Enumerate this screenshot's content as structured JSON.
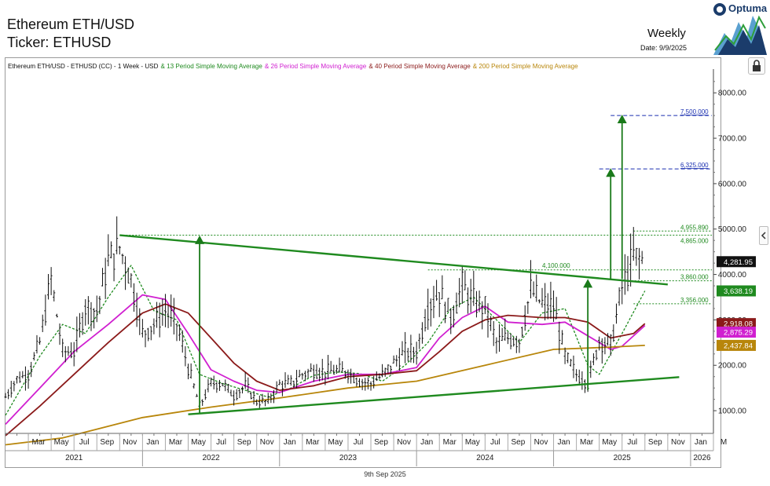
{
  "header": {
    "title": "Ethereum ETH/USD",
    "ticker_label": "Ticker: ETHUSD",
    "period": "Weekly",
    "date": "Date: 9/9/2025",
    "logo_text": "Optuma"
  },
  "footer": {
    "date": "9th Sep 2025"
  },
  "legend": [
    {
      "text": "Ethereum ETH/USD - ETHUSD (CC) - 1 Week - USD",
      "color": "#111111"
    },
    {
      "text": "& 13 Period Simple Moving Average",
      "color": "#1f8a1f"
    },
    {
      "text": "& 26 Period Simple Moving Average",
      "color": "#d020d0"
    },
    {
      "text": "& 40 Period Simple Moving Average",
      "color": "#8b1a1a"
    },
    {
      "text": "& 200 Period Simple Moving Average",
      "color": "#b8860b"
    }
  ],
  "chart_data": {
    "type": "line",
    "x_axis": {
      "months": [
        {
          "label": "Mar",
          "x": "2021-03"
        },
        {
          "label": "May",
          "x": "2021-05"
        },
        {
          "label": "Jul",
          "x": "2021-07"
        },
        {
          "label": "Sep",
          "x": "2021-09"
        },
        {
          "label": "Nov",
          "x": "2021-11"
        },
        {
          "label": "Jan",
          "x": "2022-01"
        },
        {
          "label": "Mar",
          "x": "2022-03"
        },
        {
          "label": "May",
          "x": "2022-05"
        },
        {
          "label": "Jul",
          "x": "2022-07"
        },
        {
          "label": "Sep",
          "x": "2022-09"
        },
        {
          "label": "Nov",
          "x": "2022-11"
        },
        {
          "label": "Jan",
          "x": "2023-01"
        },
        {
          "label": "Mar",
          "x": "2023-03"
        },
        {
          "label": "May",
          "x": "2023-05"
        },
        {
          "label": "Jul",
          "x": "2023-07"
        },
        {
          "label": "Sep",
          "x": "2023-09"
        },
        {
          "label": "Nov",
          "x": "2023-11"
        },
        {
          "label": "Jan",
          "x": "2024-01"
        },
        {
          "label": "Mar",
          "x": "2024-03"
        },
        {
          "label": "May",
          "x": "2024-05"
        },
        {
          "label": "Jul",
          "x": "2024-07"
        },
        {
          "label": "Sep",
          "x": "2024-09"
        },
        {
          "label": "Nov",
          "x": "2024-11"
        },
        {
          "label": "Jan",
          "x": "2025-01"
        },
        {
          "label": "Mar",
          "x": "2025-03"
        },
        {
          "label": "May",
          "x": "2025-05"
        },
        {
          "label": "Jul",
          "x": "2025-07"
        },
        {
          "label": "Sep",
          "x": "2025-09"
        },
        {
          "label": "Nov",
          "x": "2025-11"
        },
        {
          "label": "Jan",
          "x": "2026-01"
        },
        {
          "label": "M",
          "x": "2026-03"
        }
      ],
      "years": [
        {
          "label": "2021",
          "x": "2021-07"
        },
        {
          "label": "2022",
          "x": "2022-07"
        },
        {
          "label": "2023",
          "x": "2023-07"
        },
        {
          "label": "2024",
          "x": "2024-07"
        },
        {
          "label": "2025",
          "x": "2025-07"
        },
        {
          "label": "2026",
          "x": "2026-02"
        }
      ],
      "range": [
        "2021-01",
        "2026-03"
      ]
    },
    "y_axis": {
      "ticks": [
        "1000.00",
        "2000.00",
        "3000.00",
        "4000.00",
        "5000.00",
        "6000.00",
        "7000.00",
        "8000.00"
      ],
      "ylim": [
        500,
        8350
      ],
      "side": "right"
    },
    "price_tags": [
      {
        "label": "4,281.95",
        "value": 4281.95,
        "bg": "#111111",
        "fg": "#ffffff"
      },
      {
        "label": "3,638.19",
        "value": 3638.19,
        "bg": "#1f8a1f",
        "fg": "#ffffff"
      },
      {
        "label": "2,918.08",
        "value": 2918.08,
        "bg": "#8b1a1a",
        "fg": "#ffffff"
      },
      {
        "label": "2,875.29",
        "value": 2730,
        "bg": "#d020d0",
        "fg": "#ffffff"
      },
      {
        "label": "2,437.84",
        "value": 2437.84,
        "bg": "#b8860b",
        "fg": "#ffffff"
      }
    ],
    "levels": [
      {
        "label": "7,500.000",
        "value": 7500,
        "x_from": "2025-06",
        "color": "#1a2fb0",
        "dash": "5,3"
      },
      {
        "label": "6,325.000",
        "value": 6325,
        "x_from": "2025-05",
        "color": "#1a2fb0",
        "dash": "5,3"
      },
      {
        "label": "4,955.890",
        "value": 4955.89,
        "x_from": "2025-08",
        "color": "#1f8a1f",
        "dash": "2,2"
      },
      {
        "label": "4,865.000",
        "value": 4865,
        "x_from": "2021-11",
        "color": "#1f8a1f",
        "dash": "2,2"
      },
      {
        "label": "4,100.000",
        "value": 4100,
        "x_from": "2024-02",
        "color": "#1f8a1f",
        "dash": "2,2"
      },
      {
        "label": "3,860.000",
        "value": 3860,
        "x_from": "2025-07",
        "color": "#1f8a1f",
        "dash": "2,2"
      },
      {
        "label": "3,356.000",
        "value": 3356,
        "x_from": "2025-08",
        "color": "#1f8a1f",
        "dash": "2,2"
      }
    ],
    "trendlines": [
      {
        "name": "upper",
        "from": [
          "2021-11",
          4865
        ],
        "to": [
          "2025-11",
          3780
        ],
        "color": "#1f8a1f"
      },
      {
        "name": "lower",
        "from": [
          "2022-05",
          920
        ],
        "to": [
          "2025-12",
          1740
        ],
        "color": "#1f8a1f"
      }
    ],
    "arrows": [
      {
        "x": "2022-06",
        "from": 950,
        "to": 4860
      },
      {
        "x": "2025-04",
        "from": 1450,
        "to": 3900
      },
      {
        "x": "2025-06",
        "from": 3900,
        "to": 6340
      },
      {
        "x": "2025-07",
        "from": 3900,
        "to": 7520
      }
    ],
    "price_path": [
      [
        "2021-01",
        1300
      ],
      [
        "2021-02",
        1700
      ],
      [
        "2021-03",
        1800
      ],
      [
        "2021-04",
        2500
      ],
      [
        "2021-05",
        3900
      ],
      [
        "2021-06",
        2300
      ],
      [
        "2021-07",
        2300
      ],
      [
        "2021-08",
        3300
      ],
      [
        "2021-09",
        3200
      ],
      [
        "2021-10",
        4300
      ],
      [
        "2021-11",
        4600
      ],
      [
        "2021-12",
        3900
      ],
      [
        "2022-01",
        2700
      ],
      [
        "2022-02",
        2900
      ],
      [
        "2022-03",
        3200
      ],
      [
        "2022-04",
        2900
      ],
      [
        "2022-05",
        1950
      ],
      [
        "2022-06",
        1100
      ],
      [
        "2022-07",
        1600
      ],
      [
        "2022-08",
        1600
      ],
      [
        "2022-09",
        1330
      ],
      [
        "2022-10",
        1550
      ],
      [
        "2022-11",
        1200
      ],
      [
        "2022-12",
        1200
      ],
      [
        "2023-01",
        1580
      ],
      [
        "2023-02",
        1600
      ],
      [
        "2023-03",
        1800
      ],
      [
        "2023-04",
        1900
      ],
      [
        "2023-05",
        1850
      ],
      [
        "2023-06",
        1880
      ],
      [
        "2023-07",
        1850
      ],
      [
        "2023-08",
        1650
      ],
      [
        "2023-09",
        1600
      ],
      [
        "2023-10",
        1780
      ],
      [
        "2023-11",
        2050
      ],
      [
        "2023-12",
        2300
      ],
      [
        "2024-01",
        2300
      ],
      [
        "2024-02",
        3300
      ],
      [
        "2024-03",
        3600
      ],
      [
        "2024-04",
        3050
      ],
      [
        "2024-05",
        3750
      ],
      [
        "2024-06",
        3400
      ],
      [
        "2024-07",
        3250
      ],
      [
        "2024-08",
        2500
      ],
      [
        "2024-09",
        2600
      ],
      [
        "2024-10",
        2550
      ],
      [
        "2024-11",
        3650
      ],
      [
        "2024-12",
        3350
      ],
      [
        "2025-01",
        3300
      ],
      [
        "2025-02",
        2200
      ],
      [
        "2025-03",
        1800
      ],
      [
        "2025-04",
        1600
      ],
      [
        "2025-05",
        2550
      ],
      [
        "2025-06",
        2450
      ],
      [
        "2025-07",
        3700
      ],
      [
        "2025-08",
        4400
      ],
      [
        "2025-09",
        4282
      ]
    ],
    "series": [
      {
        "name": "13 Period Simple Moving Average",
        "color": "#1f8a1f",
        "dashed": true,
        "values": [
          [
            "2021-01",
            900
          ],
          [
            "2021-04",
            2200
          ],
          [
            "2021-06",
            2900
          ],
          [
            "2021-08",
            2700
          ],
          [
            "2021-10",
            3500
          ],
          [
            "2021-12",
            4200
          ],
          [
            "2022-02",
            3200
          ],
          [
            "2022-04",
            3000
          ],
          [
            "2022-06",
            1800
          ],
          [
            "2022-08",
            1600
          ],
          [
            "2022-10",
            1450
          ],
          [
            "2022-12",
            1300
          ],
          [
            "2023-02",
            1500
          ],
          [
            "2023-04",
            1780
          ],
          [
            "2023-06",
            1850
          ],
          [
            "2023-08",
            1820
          ],
          [
            "2023-10",
            1650
          ],
          [
            "2023-12",
            2000
          ],
          [
            "2024-02",
            2500
          ],
          [
            "2024-04",
            3250
          ],
          [
            "2024-06",
            3500
          ],
          [
            "2024-08",
            3000
          ],
          [
            "2024-10",
            2500
          ],
          [
            "2024-12",
            3150
          ],
          [
            "2025-02",
            3250
          ],
          [
            "2025-04",
            2000
          ],
          [
            "2025-05",
            1800
          ],
          [
            "2025-07",
            2700
          ],
          [
            "2025-09",
            3638
          ]
        ]
      },
      {
        "name": "26 Period Simple Moving Average",
        "color": "#d020d0",
        "dashed": false,
        "values": [
          [
            "2021-01",
            700
          ],
          [
            "2021-04",
            1500
          ],
          [
            "2021-07",
            2300
          ],
          [
            "2021-10",
            2900
          ],
          [
            "2022-01",
            3550
          ],
          [
            "2022-03",
            3450
          ],
          [
            "2022-05",
            2700
          ],
          [
            "2022-07",
            1900
          ],
          [
            "2022-09",
            1650
          ],
          [
            "2022-11",
            1450
          ],
          [
            "2023-01",
            1400
          ],
          [
            "2023-04",
            1650
          ],
          [
            "2023-07",
            1800
          ],
          [
            "2023-10",
            1800
          ],
          [
            "2024-01",
            1950
          ],
          [
            "2024-03",
            2600
          ],
          [
            "2024-05",
            3050
          ],
          [
            "2024-07",
            3300
          ],
          [
            "2024-09",
            2950
          ],
          [
            "2024-12",
            2900
          ],
          [
            "2025-02",
            2950
          ],
          [
            "2025-04",
            2650
          ],
          [
            "2025-06",
            2350
          ],
          [
            "2025-07",
            2420
          ],
          [
            "2025-09",
            2875
          ]
        ]
      },
      {
        "name": "40 Period Simple Moving Average",
        "color": "#8b1a1a",
        "dashed": false,
        "values": [
          [
            "2021-01",
            450
          ],
          [
            "2021-04",
            1100
          ],
          [
            "2021-07",
            1800
          ],
          [
            "2021-10",
            2500
          ],
          [
            "2022-01",
            3150
          ],
          [
            "2022-03",
            3350
          ],
          [
            "2022-05",
            3150
          ],
          [
            "2022-07",
            2600
          ],
          [
            "2022-09",
            2050
          ],
          [
            "2022-11",
            1650
          ],
          [
            "2023-01",
            1450
          ],
          [
            "2023-04",
            1550
          ],
          [
            "2023-07",
            1750
          ],
          [
            "2023-10",
            1800
          ],
          [
            "2024-01",
            1880
          ],
          [
            "2024-03",
            2300
          ],
          [
            "2024-05",
            2750
          ],
          [
            "2024-07",
            3000
          ],
          [
            "2024-09",
            3100
          ],
          [
            "2024-12",
            3050
          ],
          [
            "2025-02",
            3050
          ],
          [
            "2025-04",
            2950
          ],
          [
            "2025-06",
            2600
          ],
          [
            "2025-08",
            2700
          ],
          [
            "2025-09",
            2918
          ]
        ]
      },
      {
        "name": "200 Period Simple Moving Average",
        "color": "#b8860b",
        "dashed": false,
        "values": [
          [
            "2021-01",
            250
          ],
          [
            "2021-06",
            400
          ],
          [
            "2022-01",
            850
          ],
          [
            "2022-07",
            1080
          ],
          [
            "2023-01",
            1280
          ],
          [
            "2023-07",
            1500
          ],
          [
            "2024-01",
            1650
          ],
          [
            "2024-07",
            2000
          ],
          [
            "2025-01",
            2350
          ],
          [
            "2025-06",
            2400
          ],
          [
            "2025-09",
            2438
          ]
        ]
      }
    ]
  }
}
